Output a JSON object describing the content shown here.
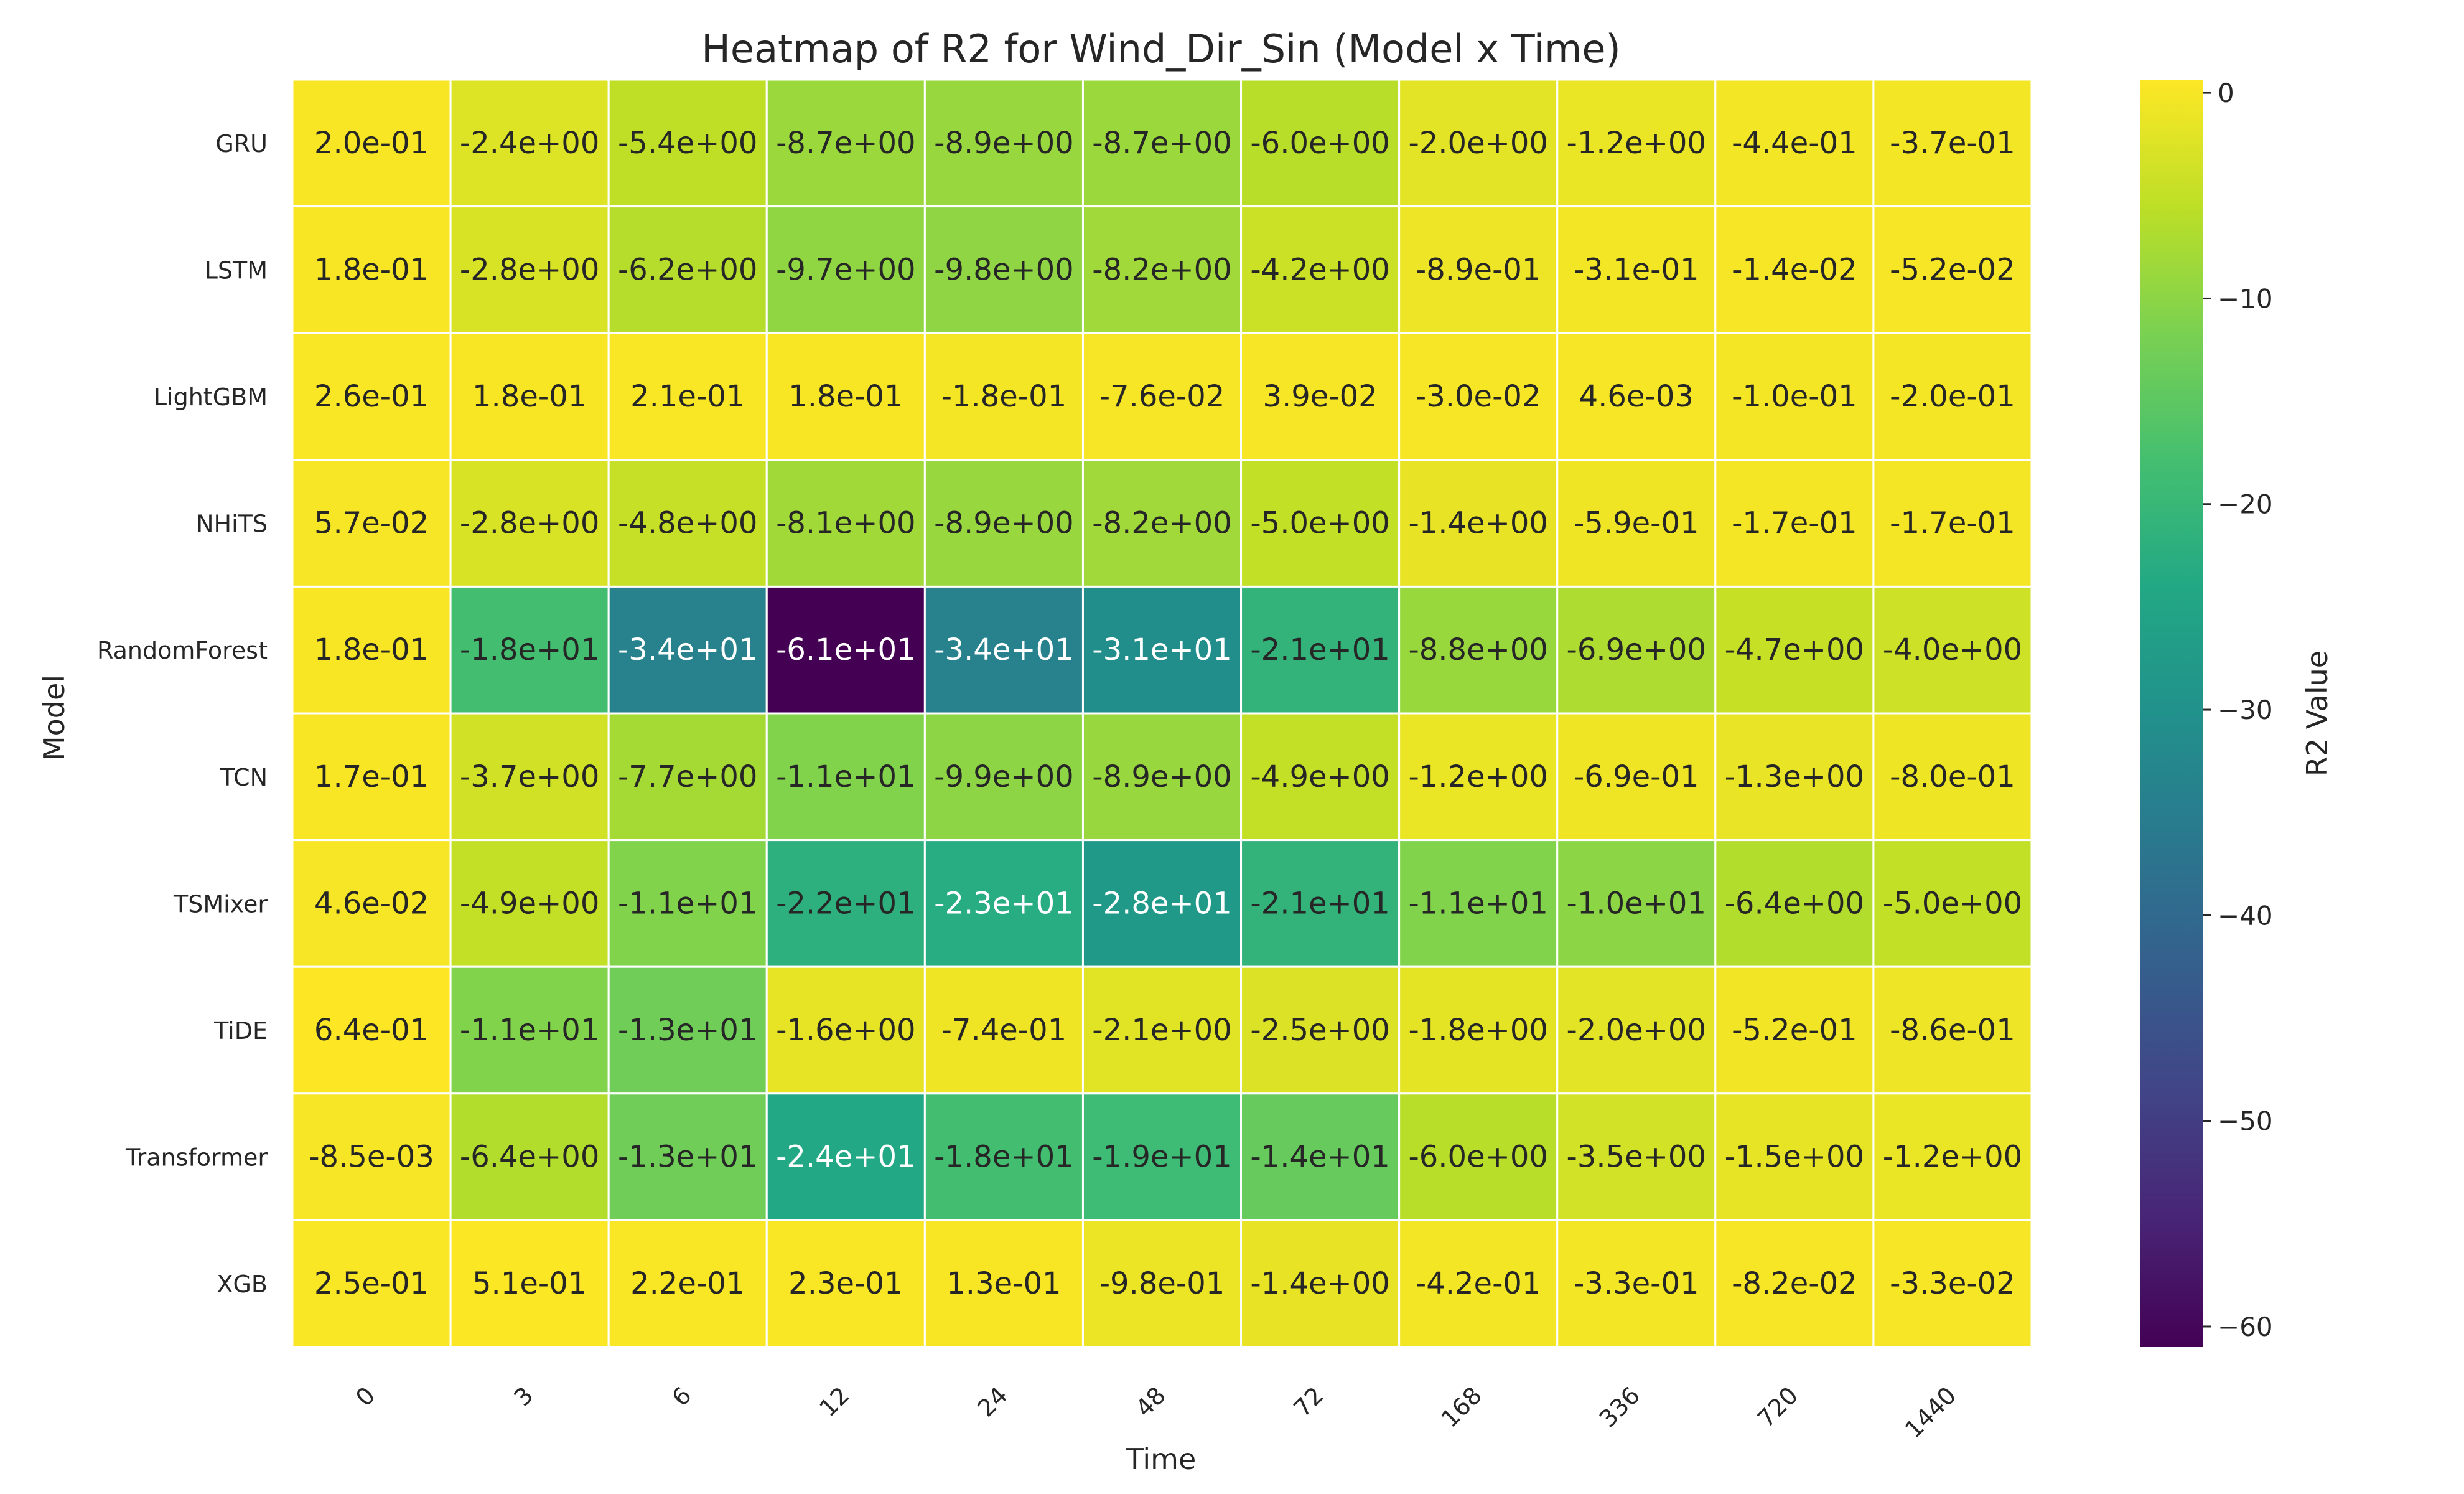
{
  "chart_data": {
    "type": "heatmap",
    "title": "Heatmap of R2 for Wind_Dir_Sin (Model x Time)",
    "xlabel": "Time",
    "ylabel": "Model",
    "colorbar_label": "R2 Value",
    "colormap": "viridis",
    "vmin": -61,
    "vmax": 0.64,
    "colorbar_ticks": [
      0,
      -10,
      -20,
      -30,
      -40,
      -50,
      -60
    ],
    "colorbar_tick_labels": [
      "0",
      "−10",
      "−20",
      "−30",
      "−40",
      "−50",
      "−60"
    ],
    "x": [
      "0",
      "3",
      "6",
      "12",
      "24",
      "48",
      "72",
      "168",
      "336",
      "720",
      "1440"
    ],
    "y": [
      "GRU",
      "LSTM",
      "LightGBM",
      "NHiTS",
      "RandomForest",
      "TCN",
      "TSMixer",
      "TiDE",
      "Transformer",
      "XGB"
    ],
    "values": [
      [
        0.2,
        -2.4,
        -5.4,
        -8.7,
        -8.9,
        -8.7,
        -6.0,
        -2.0,
        -1.2,
        -0.44,
        -0.37
      ],
      [
        0.18,
        -2.8,
        -6.2,
        -9.7,
        -9.8,
        -8.2,
        -4.2,
        -0.89,
        -0.31,
        -0.014,
        -0.052
      ],
      [
        0.26,
        0.18,
        0.21,
        0.18,
        -0.18,
        -0.076,
        0.039,
        -0.03,
        0.0046,
        -0.1,
        -0.2
      ],
      [
        0.057,
        -2.8,
        -4.8,
        -8.1,
        -8.9,
        -8.2,
        -5.0,
        -1.4,
        -0.59,
        -0.17,
        -0.17
      ],
      [
        0.18,
        -18,
        -34,
        -61,
        -34,
        -31,
        -21,
        -8.8,
        -6.9,
        -4.7,
        -4.0
      ],
      [
        0.17,
        -3.7,
        -7.7,
        -11,
        -9.9,
        -8.9,
        -4.9,
        -1.2,
        -0.69,
        -1.3,
        -0.8
      ],
      [
        0.046,
        -4.9,
        -11,
        -22,
        -23,
        -28,
        -21,
        -11,
        -10,
        -6.4,
        -5.0
      ],
      [
        0.64,
        -11,
        -13,
        -1.6,
        -0.74,
        -2.1,
        -2.5,
        -1.8,
        -2.0,
        -0.52,
        -0.86
      ],
      [
        -0.0085,
        -6.4,
        -13,
        -24,
        -18,
        -19,
        -14,
        -6.0,
        -3.5,
        -1.5,
        -1.2
      ],
      [
        0.25,
        0.51,
        0.22,
        0.23,
        0.13,
        -0.98,
        -1.4,
        -0.42,
        -0.33,
        -0.082,
        -0.033
      ]
    ],
    "value_labels": [
      [
        "2.0e-01",
        "-2.4e+00",
        "-5.4e+00",
        "-8.7e+00",
        "-8.9e+00",
        "-8.7e+00",
        "-6.0e+00",
        "-2.0e+00",
        "-1.2e+00",
        "-4.4e-01",
        "-3.7e-01"
      ],
      [
        "1.8e-01",
        "-2.8e+00",
        "-6.2e+00",
        "-9.7e+00",
        "-9.8e+00",
        "-8.2e+00",
        "-4.2e+00",
        "-8.9e-01",
        "-3.1e-01",
        "-1.4e-02",
        "-5.2e-02"
      ],
      [
        "2.6e-01",
        "1.8e-01",
        "2.1e-01",
        "1.8e-01",
        "-1.8e-01",
        "-7.6e-02",
        "3.9e-02",
        "-3.0e-02",
        "4.6e-03",
        "-1.0e-01",
        "-2.0e-01"
      ],
      [
        "5.7e-02",
        "-2.8e+00",
        "-4.8e+00",
        "-8.1e+00",
        "-8.9e+00",
        "-8.2e+00",
        "-5.0e+00",
        "-1.4e+00",
        "-5.9e-01",
        "-1.7e-01",
        "-1.7e-01"
      ],
      [
        "1.8e-01",
        "-1.8e+01",
        "-3.4e+01",
        "-6.1e+01",
        "-3.4e+01",
        "-3.1e+01",
        "-2.1e+01",
        "-8.8e+00",
        "-6.9e+00",
        "-4.7e+00",
        "-4.0e+00"
      ],
      [
        "1.7e-01",
        "-3.7e+00",
        "-7.7e+00",
        "-1.1e+01",
        "-9.9e+00",
        "-8.9e+00",
        "-4.9e+00",
        "-1.2e+00",
        "-6.9e-01",
        "-1.3e+00",
        "-8.0e-01"
      ],
      [
        "4.6e-02",
        "-4.9e+00",
        "-1.1e+01",
        "-2.2e+01",
        "-2.3e+01",
        "-2.8e+01",
        "-2.1e+01",
        "-1.1e+01",
        "-1.0e+01",
        "-6.4e+00",
        "-5.0e+00"
      ],
      [
        "6.4e-01",
        "-1.1e+01",
        "-1.3e+01",
        "-1.6e+00",
        "-7.4e-01",
        "-2.1e+00",
        "-2.5e+00",
        "-1.8e+00",
        "-2.0e+00",
        "-5.2e-01",
        "-8.6e-01"
      ],
      [
        "-8.5e-03",
        "-6.4e+00",
        "-1.3e+01",
        "-2.4e+01",
        "-1.8e+01",
        "-1.9e+01",
        "-1.4e+01",
        "-6.0e+00",
        "-3.5e+00",
        "-1.5e+00",
        "-1.2e+00"
      ],
      [
        "2.5e-01",
        "5.1e-01",
        "2.2e-01",
        "2.3e-01",
        "1.3e-01",
        "-9.8e-01",
        "-1.4e+00",
        "-4.2e-01",
        "-3.3e-01",
        "-8.2e-02",
        "-3.3e-02"
      ]
    ],
    "grid": false,
    "legend": "colorbar-right"
  }
}
